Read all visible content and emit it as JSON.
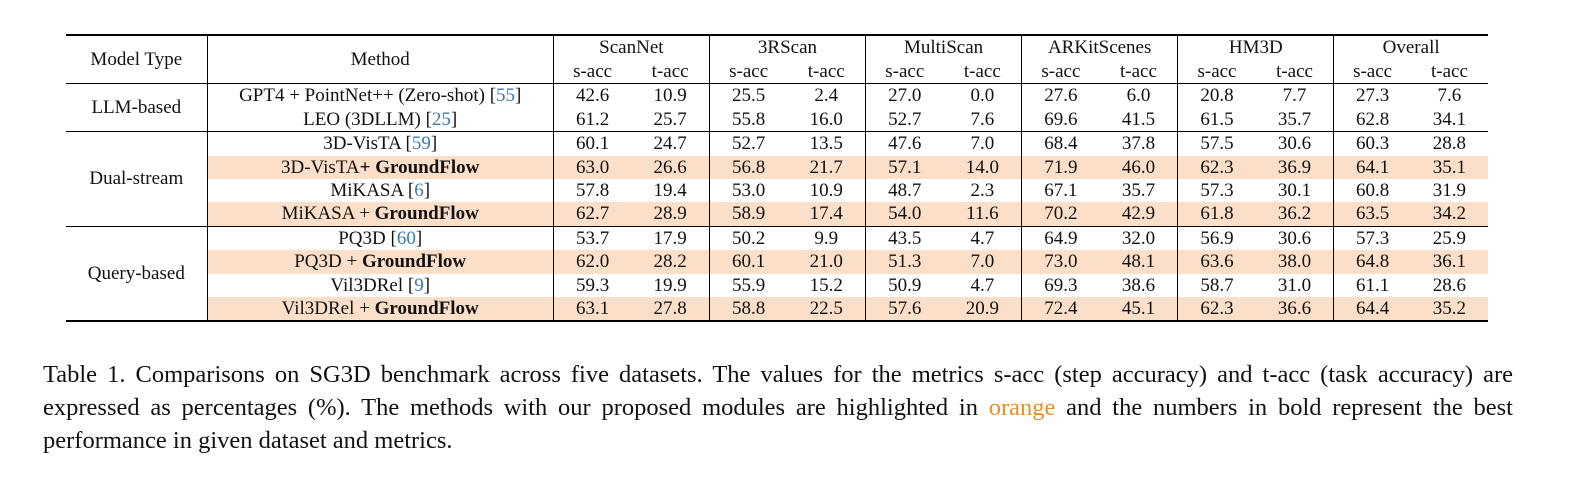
{
  "table": {
    "header": {
      "model_type": "Model Type",
      "method": "Method",
      "datasets": [
        "ScanNet",
        "3RScan",
        "MultiScan",
        "ARKitScenes",
        "HM3D",
        "Overall"
      ],
      "metrics": [
        "s-acc",
        "t-acc"
      ]
    },
    "groups": [
      {
        "name": "LLM-based",
        "rows": [
          {
            "method": "GPT4 + PointNet++ (Zero-shot) ",
            "method_bold": "",
            "cite": "55",
            "highlight": false,
            "values": [
              "42.6",
              "10.9",
              "25.5",
              "2.4",
              "27.0",
              "0.0",
              "27.6",
              "6.0",
              "20.8",
              "7.7",
              "27.3",
              "7.6"
            ],
            "bold": [
              false,
              false,
              false,
              false,
              false,
              false,
              false,
              false,
              false,
              false,
              false,
              false
            ]
          },
          {
            "method": "LEO (3DLLM) ",
            "method_bold": "",
            "cite": "25",
            "highlight": false,
            "values": [
              "61.2",
              "25.7",
              "55.8",
              "16.0",
              "52.7",
              "7.6",
              "69.6",
              "41.5",
              "61.5",
              "35.7",
              "62.8",
              "34.1"
            ],
            "bold": [
              false,
              false,
              false,
              false,
              false,
              false,
              false,
              false,
              false,
              false,
              false,
              false
            ]
          }
        ]
      },
      {
        "name": "Dual-stream",
        "rows": [
          {
            "method": "3D-VisTA ",
            "method_bold": "",
            "cite": "59",
            "highlight": false,
            "values": [
              "60.1",
              "24.7",
              "52.7",
              "13.5",
              "47.6",
              "7.0",
              "68.4",
              "37.8",
              "57.5",
              "30.6",
              "60.3",
              "28.8"
            ],
            "bold": [
              false,
              false,
              false,
              false,
              false,
              false,
              false,
              false,
              false,
              false,
              false,
              false
            ]
          },
          {
            "method": "3D-VisTA",
            "method_bold": "+ GroundFlow",
            "cite": "",
            "highlight": true,
            "values": [
              "63.0",
              "26.6",
              "56.8",
              "21.7",
              "57.1",
              "14.0",
              "71.9",
              "46.0",
              "62.3",
              "36.9",
              "64.1",
              "35.1"
            ],
            "bold": [
              false,
              false,
              false,
              false,
              false,
              false,
              false,
              false,
              false,
              false,
              false,
              false
            ]
          },
          {
            "method": "MiKASA ",
            "method_bold": "",
            "cite": "6",
            "highlight": false,
            "values": [
              "57.8",
              "19.4",
              "53.0",
              "10.9",
              "48.7",
              "2.3",
              "67.1",
              "35.7",
              "57.3",
              "30.1",
              "60.8",
              "31.9"
            ],
            "bold": [
              false,
              false,
              false,
              false,
              false,
              false,
              false,
              false,
              false,
              false,
              false,
              false
            ]
          },
          {
            "method": "MiKASA + ",
            "method_bold": "GroundFlow",
            "cite": "",
            "highlight": true,
            "values": [
              "62.7",
              "28.9",
              "58.9",
              "17.4",
              "54.0",
              "11.6",
              "70.2",
              "42.9",
              "61.8",
              "36.2",
              "63.5",
              "34.2"
            ],
            "bold": [
              false,
              true,
              false,
              false,
              false,
              false,
              false,
              false,
              false,
              false,
              false,
              false
            ]
          }
        ]
      },
      {
        "name": "Query-based",
        "rows": [
          {
            "method": "PQ3D ",
            "method_bold": "",
            "cite": "60",
            "highlight": false,
            "values": [
              "53.7",
              "17.9",
              "50.2",
              "9.9",
              "43.5",
              "4.7",
              "64.9",
              "32.0",
              "56.9",
              "30.6",
              "57.3",
              "25.9"
            ],
            "bold": [
              false,
              false,
              false,
              false,
              false,
              false,
              false,
              false,
              false,
              false,
              false,
              false
            ]
          },
          {
            "method": "PQ3D + ",
            "method_bold": "GroundFlow",
            "cite": "",
            "highlight": true,
            "values": [
              "62.0",
              "28.2",
              "60.1",
              "21.0",
              "51.3",
              "7.0",
              "73.0",
              "48.1",
              "63.6",
              "38.0",
              "64.8",
              "36.1"
            ],
            "bold": [
              false,
              false,
              true,
              false,
              false,
              false,
              true,
              true,
              true,
              true,
              true,
              true
            ]
          },
          {
            "method": "Vil3DRel ",
            "method_bold": "",
            "cite": "9",
            "highlight": false,
            "values": [
              "59.3",
              "19.9",
              "55.9",
              "15.2",
              "50.9",
              "4.7",
              "69.3",
              "38.6",
              "58.7",
              "31.0",
              "61.1",
              "28.6"
            ],
            "bold": [
              false,
              false,
              false,
              false,
              false,
              false,
              false,
              false,
              false,
              false,
              false,
              false
            ]
          },
          {
            "method": "Vil3DRel + ",
            "method_bold": "GroundFlow",
            "cite": "",
            "highlight": true,
            "values": [
              "63.1",
              "27.8",
              "58.8",
              "22.5",
              "57.6",
              "20.9",
              "72.4",
              "45.1",
              "62.3",
              "36.6",
              "64.4",
              "35.2"
            ],
            "bold": [
              true,
              false,
              false,
              true,
              true,
              true,
              false,
              false,
              false,
              false,
              false,
              false
            ]
          }
        ]
      }
    ]
  },
  "caption": {
    "part1": "Table 1. Comparisons on SG3D benchmark across five datasets. The values for the metrics s-acc (step accuracy) and t-acc (task accuracy) are expressed as percentages (%). The methods with our proposed modules are highlighted in ",
    "orange_word": "orange",
    "part2": " and the numbers in bold represent the best performance in given dataset and metrics."
  },
  "colors": {
    "highlight": "#fbdfc9",
    "citation": "#3a78b0",
    "orange_text": "#e69023"
  }
}
